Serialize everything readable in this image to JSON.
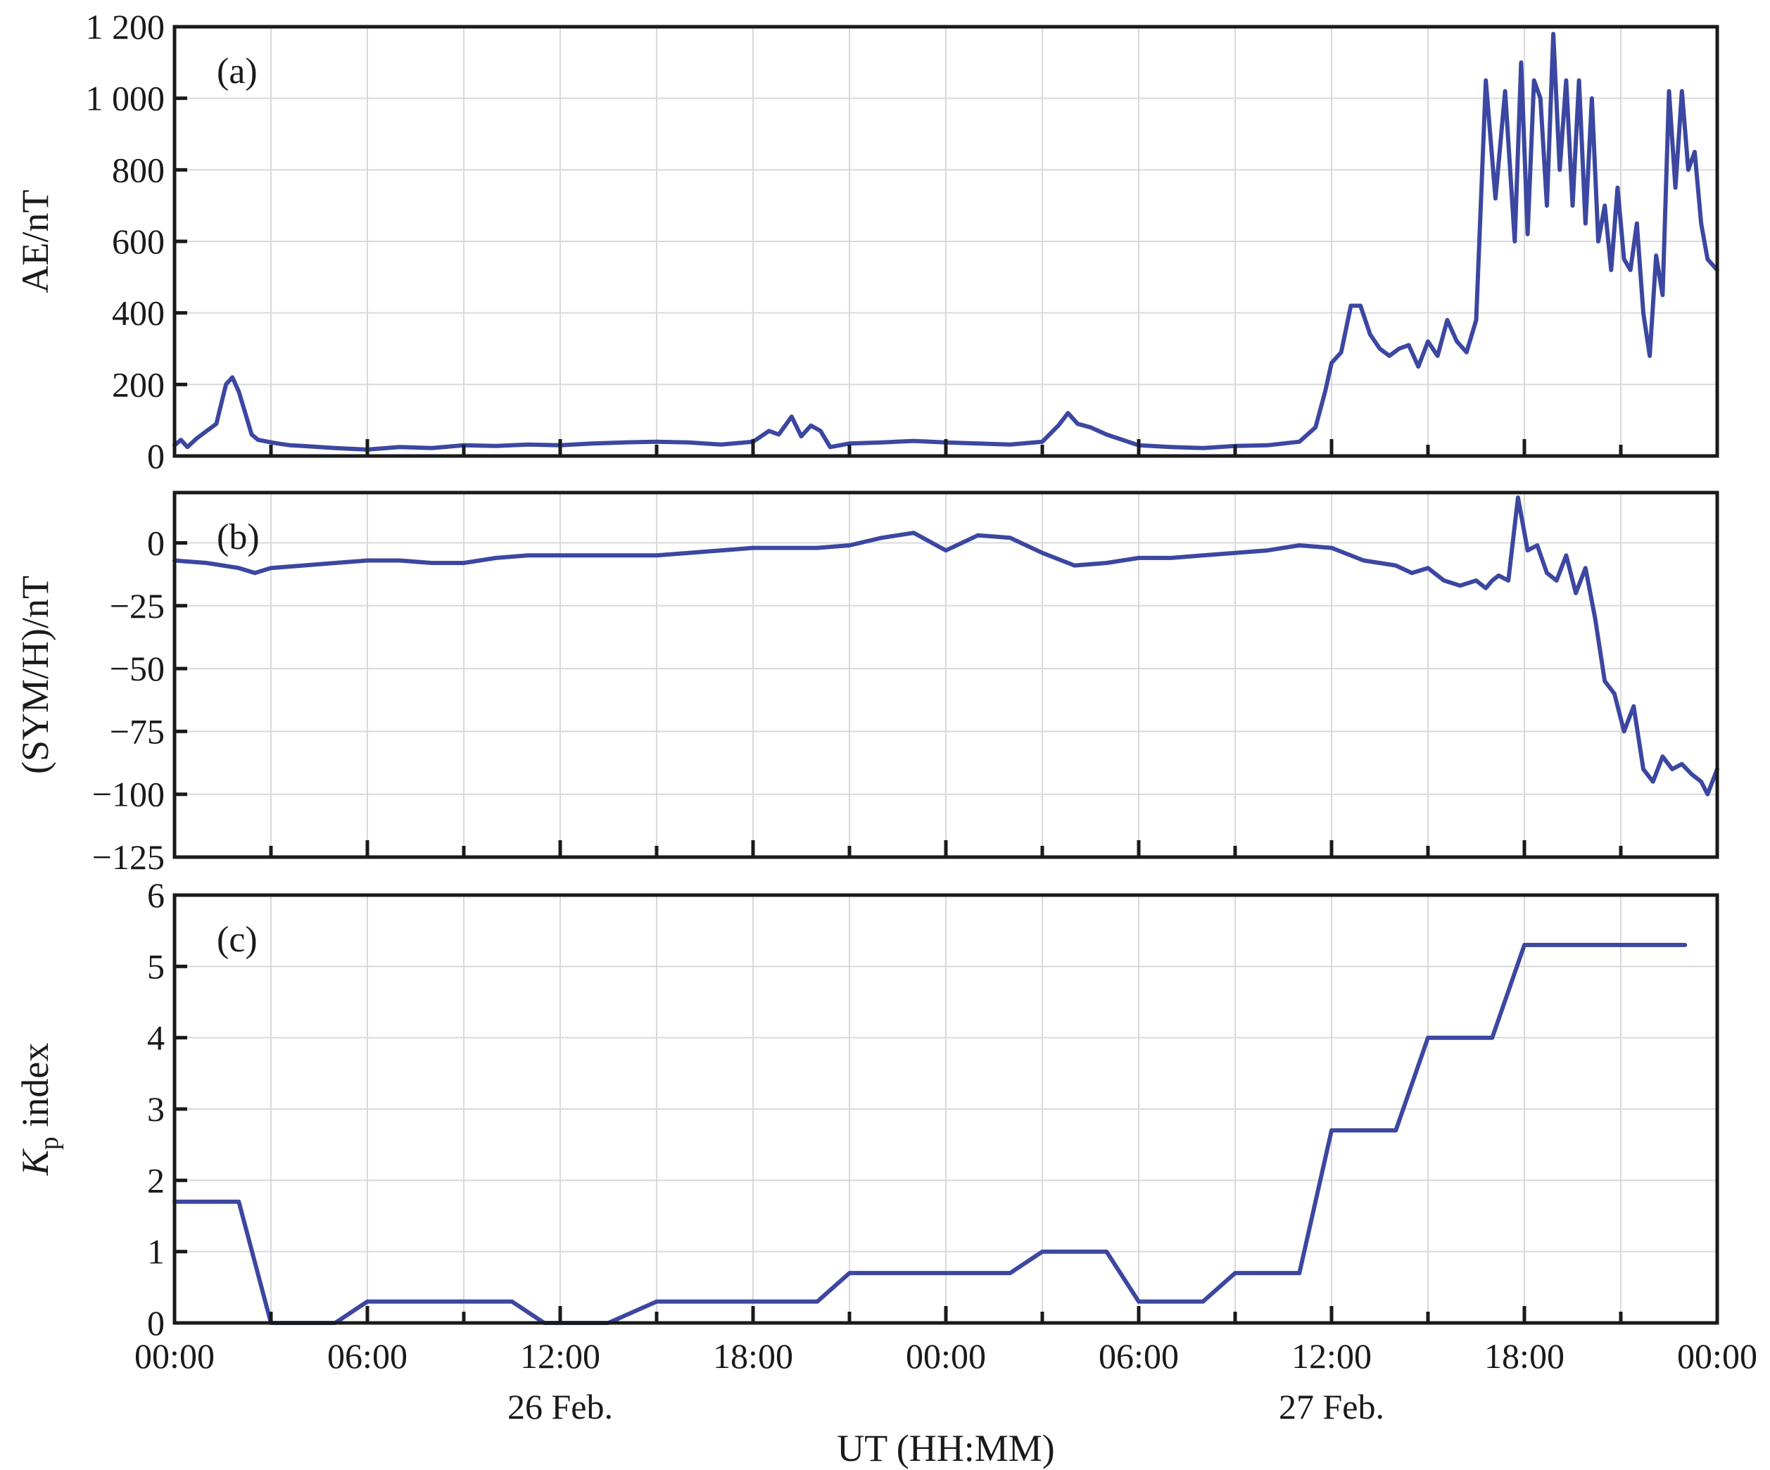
{
  "colors": {
    "series": "#3b47a0",
    "axis": "#1a1a1a",
    "grid": "#d9d9d9"
  },
  "chart_data": [
    {
      "type": "line",
      "panel_tag": "(a)",
      "ylabel": "AE/nT",
      "x_unit": "hours since 26 Feb. 00:00 UT",
      "ylim": [
        0,
        1200
      ],
      "yticks": [
        0,
        200,
        400,
        600,
        800,
        1000,
        1200
      ],
      "ytick_labels": [
        "0",
        "200",
        "400",
        "600",
        "800",
        "1 000",
        "1 200"
      ],
      "grid": true,
      "series": [
        {
          "x": [
            0,
            0.2,
            0.4,
            0.7,
            1.0,
            1.3,
            1.6,
            1.8,
            2.0,
            2.2,
            2.4,
            2.6,
            2.9,
            3.2,
            3.6,
            4.0,
            5.0,
            6.0,
            7.0,
            8.0,
            9.0,
            10.0,
            11.0,
            12.0,
            13.0,
            14.0,
            15.0,
            16.0,
            17.0,
            18.0,
            18.5,
            18.8,
            19.2,
            19.5,
            19.8,
            20.1,
            20.4,
            20.7,
            21.0,
            22.0,
            23.0,
            24.0,
            25.0,
            26.0,
            27.0,
            27.5,
            27.8,
            28.1,
            28.5,
            29.0,
            30.0,
            31.0,
            32.0,
            33.0,
            34.0,
            35.0,
            35.5,
            35.8,
            36.0,
            36.3,
            36.6,
            36.9,
            37.2,
            37.5,
            37.8,
            38.1,
            38.4,
            38.7,
            39.0,
            39.3,
            39.6,
            39.9,
            40.2,
            40.5,
            40.8,
            41.1,
            41.4,
            41.7,
            41.9,
            42.1,
            42.3,
            42.5,
            42.7,
            42.9,
            43.1,
            43.3,
            43.5,
            43.7,
            43.9,
            44.1,
            44.3,
            44.5,
            44.7,
            44.9,
            45.1,
            45.3,
            45.5,
            45.7,
            45.9,
            46.1,
            46.3,
            46.5,
            46.7,
            46.9,
            47.1,
            47.3,
            47.5,
            47.7,
            48.0
          ],
          "y": [
            30,
            45,
            25,
            50,
            70,
            90,
            200,
            220,
            180,
            120,
            60,
            45,
            40,
            35,
            30,
            28,
            22,
            18,
            25,
            22,
            30,
            28,
            32,
            30,
            35,
            38,
            40,
            38,
            32,
            40,
            70,
            60,
            110,
            55,
            85,
            70,
            25,
            30,
            35,
            38,
            42,
            38,
            35,
            32,
            40,
            85,
            120,
            90,
            80,
            60,
            30,
            25,
            22,
            28,
            30,
            40,
            80,
            180,
            260,
            290,
            420,
            420,
            340,
            300,
            280,
            300,
            310,
            250,
            320,
            280,
            380,
            320,
            290,
            380,
            1050,
            720,
            1020,
            600,
            1100,
            620,
            1050,
            1000,
            700,
            1180,
            800,
            1050,
            700,
            1050,
            650,
            1000,
            600,
            700,
            520,
            750,
            550,
            520,
            650,
            400,
            280,
            560,
            450,
            1020,
            750,
            1020,
            800,
            850,
            650,
            550,
            520
          ]
        }
      ]
    },
    {
      "type": "line",
      "panel_tag": "(b)",
      "ylabel": "(SYM/H)/nT",
      "x_unit": "hours since 26 Feb. 00:00 UT",
      "ylim": [
        -125,
        20
      ],
      "yticks": [
        0,
        -25,
        -50,
        -75,
        -100,
        -125
      ],
      "ytick_labels": [
        "0",
        "−25",
        "−50",
        "−75",
        "−100",
        "−125"
      ],
      "grid": true,
      "series": [
        {
          "x": [
            0,
            1.0,
            2.0,
            2.5,
            3.0,
            4.0,
            5.0,
            6.0,
            7.0,
            8.0,
            9.0,
            10.0,
            11.0,
            12.0,
            13.0,
            14.0,
            15.0,
            16.0,
            17.0,
            18.0,
            19.0,
            20.0,
            21.0,
            22.0,
            23.0,
            24.0,
            25.0,
            26.0,
            27.0,
            28.0,
            29.0,
            30.0,
            31.0,
            32.0,
            33.0,
            34.0,
            35.0,
            36.0,
            37.0,
            38.0,
            38.5,
            39.0,
            39.5,
            40.0,
            40.5,
            40.8,
            41.0,
            41.2,
            41.5,
            41.8,
            42.1,
            42.4,
            42.7,
            43.0,
            43.3,
            43.6,
            43.9,
            44.2,
            44.5,
            44.8,
            45.1,
            45.4,
            45.7,
            46.0,
            46.3,
            46.6,
            46.9,
            47.2,
            47.5,
            47.7,
            48.0
          ],
          "y": [
            -7,
            -8,
            -10,
            -12,
            -10,
            -9,
            -8,
            -7,
            -7,
            -8,
            -8,
            -6,
            -5,
            -5,
            -5,
            -5,
            -5,
            -4,
            -3,
            -2,
            -2,
            -2,
            -1,
            2,
            4,
            -3,
            3,
            2,
            -4,
            -9,
            -8,
            -6,
            -6,
            -5,
            -4,
            -3,
            -1,
            -2,
            -7,
            -9,
            -12,
            -10,
            -15,
            -17,
            -15,
            -18,
            -15,
            -13,
            -15,
            18,
            -3,
            -1,
            -12,
            -15,
            -5,
            -20,
            -10,
            -30,
            -55,
            -60,
            -75,
            -65,
            -90,
            -95,
            -85,
            -90,
            -88,
            -92,
            -95,
            -100,
            -90
          ]
        }
      ]
    },
    {
      "type": "line",
      "panel_tag": "(c)",
      "ylabel": "K",
      "ylabel_subscript": "p",
      "ylabel_suffix": " index",
      "x_unit": "hours since 26 Feb. 00:00 UT",
      "ylim": [
        0,
        6
      ],
      "yticks": [
        0,
        1,
        2,
        3,
        4,
        5,
        6
      ],
      "ytick_labels": [
        "0",
        "1",
        "2",
        "3",
        "4",
        "5",
        "6"
      ],
      "xlabel": "UT (HH:MM)",
      "xticks": [
        0,
        6,
        12,
        18,
        24,
        30,
        36,
        42,
        48
      ],
      "xtick_labels": [
        "00:00",
        "06:00",
        "12:00",
        "18:00",
        "00:00",
        "06:00",
        "12:00",
        "18:00",
        "00:00"
      ],
      "date_labels": [
        {
          "x": 12,
          "text": "26 Feb."
        },
        {
          "x": 36,
          "text": "27 Feb."
        }
      ],
      "grid": true,
      "series": [
        {
          "x": [
            0,
            2.0,
            3.0,
            5.0,
            6.0,
            10.5,
            11.5,
            13.5,
            15.0,
            20.0,
            21.0,
            26.0,
            27.0,
            29.0,
            30.0,
            32.0,
            33.0,
            35.0,
            36.0,
            38.0,
            39.0,
            41.0,
            42.0,
            47.0
          ],
          "y": [
            1.7,
            1.7,
            0,
            0,
            0.3,
            0.3,
            0,
            0,
            0.3,
            0.3,
            0.7,
            0.7,
            1.0,
            1.0,
            0.3,
            0.3,
            0.7,
            0.7,
            2.7,
            2.7,
            4.0,
            4.0,
            5.3,
            5.3
          ]
        }
      ]
    }
  ]
}
